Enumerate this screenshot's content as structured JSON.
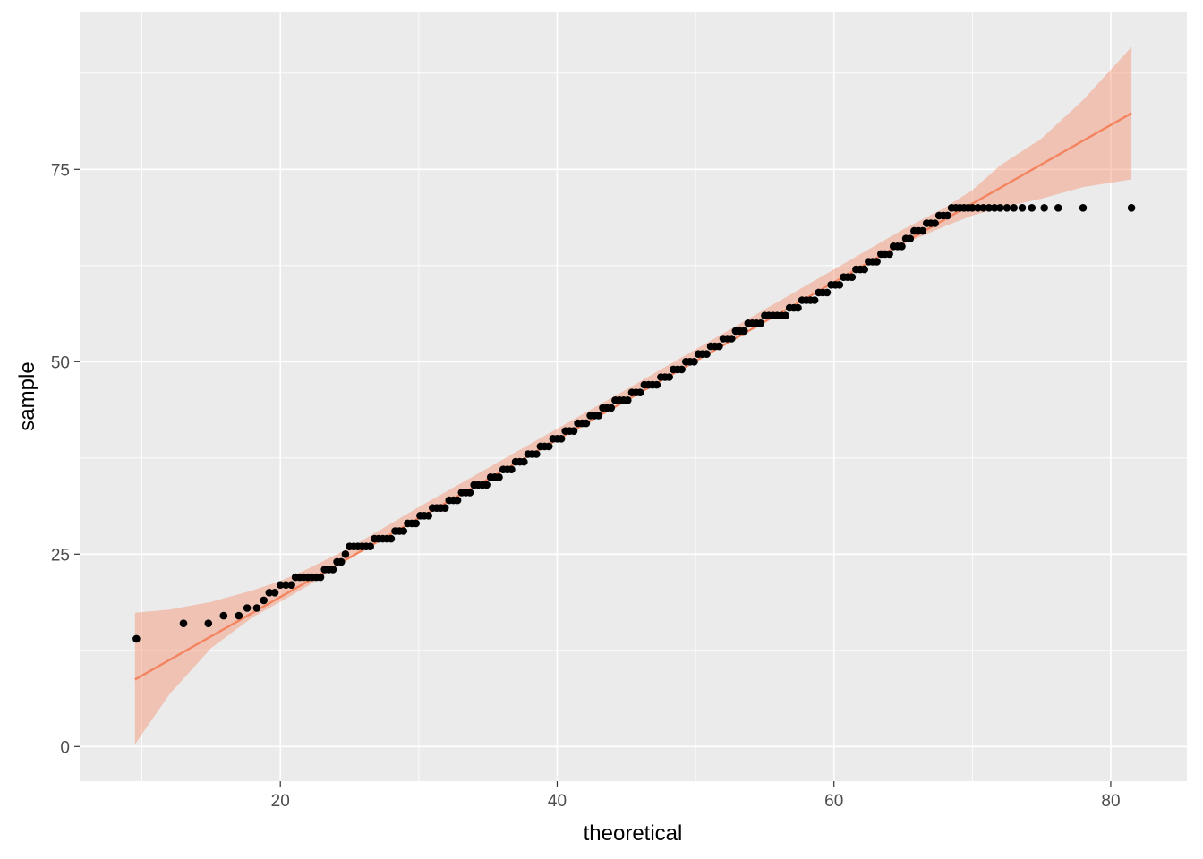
{
  "chart_data": {
    "type": "scatter",
    "title": "",
    "xlabel": "theoretical",
    "ylabel": "sample",
    "xlim": [
      5.5,
      85.5
    ],
    "ylim": [
      -4.5,
      95.5
    ],
    "x_ticks": [
      20,
      40,
      60,
      80
    ],
    "y_ticks": [
      0,
      25,
      50,
      75
    ],
    "x_tick_labels": [
      "20",
      "40",
      "60",
      "80"
    ],
    "y_tick_labels": [
      "0",
      "25",
      "50",
      "75"
    ],
    "grid": true,
    "colors": {
      "panel_background": "#EBEBEB",
      "grid": "#FFFFFF",
      "points": "#000000",
      "line": "#F4845F",
      "ribbon": "#F4845F"
    },
    "reference_line": {
      "x": [
        9.5,
        81.5
      ],
      "y": [
        8.7,
        82.3
      ]
    },
    "confidence_band": {
      "x": [
        9.5,
        12,
        15,
        18,
        20,
        22,
        25,
        30,
        35,
        40,
        45,
        50,
        55,
        60,
        65,
        68,
        70,
        72,
        75,
        78,
        81.5
      ],
      "lower": [
        0.3,
        6.8,
        12.8,
        16.8,
        18.8,
        20.9,
        24.4,
        29.7,
        35.0,
        40.1,
        45.3,
        50.4,
        55.5,
        60.5,
        65.3,
        67.6,
        69.0,
        70.0,
        71.2,
        72.7,
        73.7
      ],
      "upper": [
        17.4,
        17.8,
        18.8,
        20.3,
        21.5,
        23.1,
        25.8,
        31.1,
        36.2,
        41.3,
        46.4,
        51.6,
        56.8,
        62.0,
        67.2,
        70.0,
        72.3,
        75.5,
        79.0,
        84.0,
        90.9
      ]
    },
    "points": {
      "x": [
        9.6,
        13.0,
        14.8,
        15.9,
        17.0,
        17.6,
        18.3,
        18.8,
        19.2,
        19.6,
        20.0,
        20.4,
        20.8,
        21.1,
        21.4,
        21.7,
        22.0,
        22.3,
        22.6,
        22.9,
        23.2,
        23.5,
        23.8,
        24.1,
        24.4,
        24.7,
        25.0,
        25.3,
        25.6,
        25.9,
        26.2,
        26.5,
        26.8,
        27.1,
        27.4,
        27.7,
        28.0,
        28.3,
        28.6,
        28.9,
        29.2,
        29.5,
        29.8,
        30.1,
        30.4,
        30.7,
        31.0,
        31.3,
        31.6,
        31.9,
        32.2,
        32.5,
        32.8,
        33.1,
        33.4,
        33.7,
        34.0,
        34.3,
        34.6,
        34.9,
        35.2,
        35.5,
        35.8,
        36.1,
        36.4,
        36.7,
        37.0,
        37.3,
        37.6,
        37.9,
        38.2,
        38.5,
        38.8,
        39.1,
        39.4,
        39.7,
        40.0,
        40.3,
        40.6,
        40.9,
        41.2,
        41.5,
        41.8,
        42.1,
        42.4,
        42.7,
        43.0,
        43.3,
        43.6,
        43.9,
        44.2,
        44.5,
        44.8,
        45.1,
        45.4,
        45.7,
        46.0,
        46.3,
        46.6,
        46.9,
        47.2,
        47.5,
        47.8,
        48.1,
        48.4,
        48.7,
        49.0,
        49.3,
        49.6,
        49.9,
        50.2,
        50.5,
        50.8,
        51.1,
        51.4,
        51.7,
        52.0,
        52.3,
        52.6,
        52.9,
        53.2,
        53.5,
        53.8,
        54.1,
        54.4,
        54.7,
        55.0,
        55.3,
        55.6,
        55.9,
        56.2,
        56.5,
        56.8,
        57.1,
        57.4,
        57.7,
        58.0,
        58.3,
        58.6,
        58.9,
        59.2,
        59.5,
        59.8,
        60.1,
        60.4,
        60.7,
        61.0,
        61.3,
        61.6,
        61.9,
        62.2,
        62.5,
        62.8,
        63.1,
        63.4,
        63.7,
        64.0,
        64.3,
        64.6,
        64.9,
        65.2,
        65.5,
        65.8,
        66.1,
        66.4,
        66.7,
        67.0,
        67.3,
        67.6,
        67.9,
        68.2,
        68.5,
        68.8,
        69.1,
        69.4,
        69.7,
        70.0,
        70.4,
        70.8,
        71.2,
        71.6,
        72.0,
        72.5,
        73.0,
        73.6,
        74.3,
        75.2,
        76.2,
        78.0,
        81.5
      ],
      "y": [
        14,
        16,
        16,
        17,
        17,
        18,
        18,
        19,
        20,
        20,
        21,
        21,
        21,
        22,
        22,
        22,
        22,
        22,
        22,
        22,
        23,
        23,
        23,
        24,
        24,
        25,
        26,
        26,
        26,
        26,
        26,
        26,
        27,
        27,
        27,
        27,
        27,
        28,
        28,
        28,
        29,
        29,
        29,
        30,
        30,
        30,
        31,
        31,
        31,
        31,
        32,
        32,
        32,
        33,
        33,
        33,
        34,
        34,
        34,
        34,
        35,
        35,
        35,
        36,
        36,
        36,
        37,
        37,
        37,
        38,
        38,
        38,
        39,
        39,
        39,
        40,
        40,
        40,
        41,
        41,
        41,
        42,
        42,
        42,
        43,
        43,
        43,
        44,
        44,
        44,
        45,
        45,
        45,
        45,
        46,
        46,
        46,
        47,
        47,
        47,
        47,
        48,
        48,
        48,
        49,
        49,
        49,
        50,
        50,
        50,
        51,
        51,
        51,
        52,
        52,
        52,
        53,
        53,
        53,
        54,
        54,
        54,
        55,
        55,
        55,
        55,
        56,
        56,
        56,
        56,
        56,
        56,
        57,
        57,
        57,
        58,
        58,
        58,
        58,
        59,
        59,
        59,
        60,
        60,
        60,
        61,
        61,
        61,
        62,
        62,
        62,
        63,
        63,
        63,
        64,
        64,
        64,
        65,
        65,
        65,
        66,
        66,
        67,
        67,
        67,
        68,
        68,
        68,
        69,
        69,
        69,
        70,
        70,
        70,
        70,
        70,
        70,
        70,
        70,
        70,
        70,
        70,
        70,
        70,
        70,
        70,
        70,
        70,
        70,
        70
      ]
    }
  }
}
